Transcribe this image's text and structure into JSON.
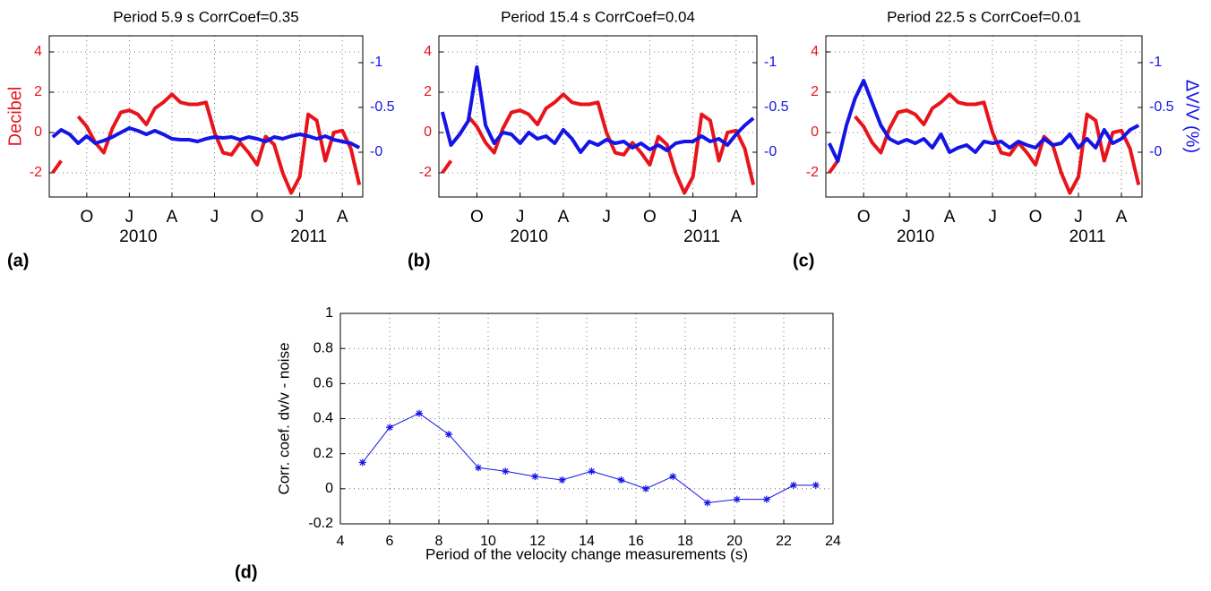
{
  "chart_data": [
    {
      "type": "line",
      "title": "Period 5.9 s CorrCoef=0.35",
      "panel_label": "(a)",
      "ylabel": "Decibel",
      "x": [
        2009.55,
        2009.6,
        2009.65,
        2009.7,
        2009.75,
        2009.8,
        2009.85,
        2009.9,
        2009.95,
        2010.0,
        2010.05,
        2010.1,
        2010.15,
        2010.2,
        2010.25,
        2010.3,
        2010.35,
        2010.4,
        2010.45,
        2010.5,
        2010.55,
        2010.6,
        2010.65,
        2010.7,
        2010.75,
        2010.8,
        2010.85,
        2010.9,
        2010.95,
        2011.0,
        2011.05,
        2011.1,
        2011.15,
        2011.2,
        2011.25,
        2011.3,
        2011.35
      ],
      "xlim": [
        2009.53,
        2011.37
      ],
      "xticks": [
        {
          "value": 2009.75,
          "label": "O"
        },
        {
          "value": 2010.0,
          "label": "J"
        },
        {
          "value": 2010.25,
          "label": "A"
        },
        {
          "value": 2010.5,
          "label": "J"
        },
        {
          "value": 2010.75,
          "label": "O"
        },
        {
          "value": 2011.0,
          "label": "J"
        },
        {
          "value": 2011.25,
          "label": "A"
        }
      ],
      "year_ticks": [
        2010,
        2011
      ],
      "ylim": [
        -3.2,
        4.8
      ],
      "yticks": [
        -2,
        0,
        2,
        4
      ],
      "y2lim": [
        0.5,
        -1.3
      ],
      "y2ticks": [
        -1,
        -0.5,
        {
          "value": 0,
          "label": "-0"
        }
      ],
      "grid": true,
      "series": [
        {
          "color": "#e8141b",
          "values": [
            -2.0,
            -1.4,
            null,
            0.8,
            0.3,
            -0.5,
            -1.0,
            0.2,
            1.0,
            1.1,
            0.9,
            0.4,
            1.2,
            1.5,
            1.9,
            1.5,
            1.4,
            1.4,
            1.5,
            0.0,
            -1.0,
            -1.1,
            -0.5,
            -1.0,
            -1.6,
            -0.2,
            -0.6,
            -2.0,
            -3.0,
            -2.2,
            0.9,
            0.6,
            -1.4,
            0.0,
            0.1,
            -0.8,
            -2.6
          ]
        },
        {
          "color": "#1414e6",
          "axis": "y2",
          "values": [
            -0.17,
            -0.25,
            -0.2,
            -0.1,
            -0.18,
            -0.1,
            -0.13,
            -0.17,
            -0.22,
            -0.27,
            -0.24,
            -0.2,
            -0.24,
            -0.2,
            -0.15,
            -0.14,
            -0.14,
            -0.12,
            -0.15,
            -0.17,
            -0.16,
            -0.17,
            -0.14,
            -0.17,
            -0.15,
            -0.12,
            -0.17,
            -0.15,
            -0.18,
            -0.2,
            -0.18,
            -0.15,
            -0.18,
            -0.14,
            -0.12,
            -0.1,
            -0.05
          ]
        }
      ]
    },
    {
      "type": "line",
      "title": "Period 15.4 s CorrCoef=0.04",
      "panel_label": "(b)",
      "x": [
        2009.55,
        2009.6,
        2009.65,
        2009.7,
        2009.75,
        2009.8,
        2009.85,
        2009.9,
        2009.95,
        2010.0,
        2010.05,
        2010.1,
        2010.15,
        2010.2,
        2010.25,
        2010.3,
        2010.35,
        2010.4,
        2010.45,
        2010.5,
        2010.55,
        2010.6,
        2010.65,
        2010.7,
        2010.75,
        2010.8,
        2010.85,
        2010.9,
        2010.95,
        2011.0,
        2011.05,
        2011.1,
        2011.15,
        2011.2,
        2011.25,
        2011.3,
        2011.35
      ],
      "xlim": [
        2009.53,
        2011.37
      ],
      "xticks": [
        {
          "value": 2009.75,
          "label": "O"
        },
        {
          "value": 2010.0,
          "label": "J"
        },
        {
          "value": 2010.25,
          "label": "A"
        },
        {
          "value": 2010.5,
          "label": "J"
        },
        {
          "value": 2010.75,
          "label": "O"
        },
        {
          "value": 2011.0,
          "label": "J"
        },
        {
          "value": 2011.25,
          "label": "A"
        }
      ],
      "year_ticks": [
        2010,
        2011
      ],
      "ylim": [
        -3.2,
        4.8
      ],
      "yticks": [
        -2,
        0,
        2,
        4
      ],
      "y2lim": [
        0.5,
        -1.3
      ],
      "y2ticks": [
        -1,
        -0.5,
        {
          "value": 0,
          "label": "-0"
        }
      ],
      "grid": true,
      "series": [
        {
          "color": "#e8141b",
          "values": [
            -2.0,
            -1.4,
            null,
            0.8,
            0.3,
            -0.5,
            -1.0,
            0.2,
            1.0,
            1.1,
            0.9,
            0.4,
            1.2,
            1.5,
            1.9,
            1.5,
            1.4,
            1.4,
            1.5,
            0.0,
            -1.0,
            -1.1,
            -0.5,
            -1.0,
            -1.6,
            -0.2,
            -0.6,
            -2.0,
            -3.0,
            -2.2,
            0.9,
            0.6,
            -1.4,
            0.0,
            0.1,
            -0.8,
            -2.6
          ]
        },
        {
          "color": "#1414e6",
          "axis": "y2",
          "values": [
            -0.45,
            -0.08,
            -0.2,
            -0.35,
            -0.95,
            -0.3,
            -0.1,
            -0.22,
            -0.2,
            -0.1,
            -0.22,
            -0.15,
            -0.18,
            -0.1,
            -0.25,
            -0.15,
            0.0,
            -0.12,
            -0.08,
            -0.14,
            -0.1,
            -0.12,
            -0.05,
            -0.1,
            -0.03,
            -0.08,
            -0.02,
            -0.1,
            -0.12,
            -0.12,
            -0.18,
            -0.12,
            -0.15,
            -0.08,
            -0.2,
            -0.3,
            -0.38
          ]
        }
      ]
    },
    {
      "type": "line",
      "title": "Period 22.5 s CorrCoef=0.01",
      "panel_label": "(c)",
      "y2label": "ΔV/V (%)",
      "x": [
        2009.55,
        2009.6,
        2009.65,
        2009.7,
        2009.75,
        2009.8,
        2009.85,
        2009.9,
        2009.95,
        2010.0,
        2010.05,
        2010.1,
        2010.15,
        2010.2,
        2010.25,
        2010.3,
        2010.35,
        2010.4,
        2010.45,
        2010.5,
        2010.55,
        2010.6,
        2010.65,
        2010.7,
        2010.75,
        2010.8,
        2010.85,
        2010.9,
        2010.95,
        2011.0,
        2011.05,
        2011.1,
        2011.15,
        2011.2,
        2011.25,
        2011.3,
        2011.35
      ],
      "xlim": [
        2009.53,
        2011.37
      ],
      "xticks": [
        {
          "value": 2009.75,
          "label": "O"
        },
        {
          "value": 2010.0,
          "label": "J"
        },
        {
          "value": 2010.25,
          "label": "A"
        },
        {
          "value": 2010.5,
          "label": "J"
        },
        {
          "value": 2010.75,
          "label": "O"
        },
        {
          "value": 2011.0,
          "label": "J"
        },
        {
          "value": 2011.25,
          "label": "A"
        }
      ],
      "year_ticks": [
        2010,
        2011
      ],
      "ylim": [
        -3.2,
        4.8
      ],
      "yticks": [
        -2,
        0,
        2,
        4
      ],
      "y2lim": [
        0.5,
        -1.3
      ],
      "y2ticks": [
        -1,
        -0.5,
        {
          "value": 0,
          "label": "-0"
        }
      ],
      "grid": true,
      "series": [
        {
          "color": "#e8141b",
          "values": [
            -2.0,
            -1.4,
            null,
            0.8,
            0.3,
            -0.5,
            -1.0,
            0.2,
            1.0,
            1.1,
            0.9,
            0.4,
            1.2,
            1.5,
            1.9,
            1.5,
            1.4,
            1.4,
            1.5,
            0.0,
            -1.0,
            -1.1,
            -0.5,
            -1.0,
            -1.6,
            -0.2,
            -0.6,
            -2.0,
            -3.0,
            -2.2,
            0.9,
            0.6,
            -1.4,
            0.0,
            0.1,
            -0.8,
            -2.6
          ]
        },
        {
          "color": "#1414e6",
          "axis": "y2",
          "values": [
            -0.1,
            0.1,
            -0.3,
            -0.6,
            -0.8,
            -0.55,
            -0.3,
            -0.15,
            -0.1,
            -0.14,
            -0.1,
            -0.15,
            -0.05,
            -0.2,
            0.0,
            -0.05,
            -0.08,
            0.0,
            -0.12,
            -0.1,
            -0.12,
            -0.05,
            -0.12,
            -0.08,
            -0.05,
            -0.15,
            -0.08,
            -0.1,
            -0.2,
            -0.05,
            -0.15,
            -0.05,
            -0.25,
            -0.1,
            -0.15,
            -0.25,
            -0.3
          ]
        }
      ]
    },
    {
      "type": "line",
      "panel_label": "(d)",
      "xlabel": "Period of the velocity change measurements (s)",
      "ylabel": "Corr. coef. dv/v - noise",
      "x": [
        4.9,
        6.0,
        7.2,
        8.4,
        9.6,
        10.7,
        11.9,
        13.0,
        14.2,
        15.4,
        16.4,
        17.5,
        18.9,
        20.1,
        21.3,
        22.4,
        23.3
      ],
      "values": [
        0.15,
        0.35,
        0.43,
        0.31,
        0.12,
        0.1,
        0.07,
        0.05,
        0.1,
        0.05,
        0.0,
        0.07,
        -0.08,
        -0.06,
        -0.06,
        0.02,
        0.02
      ],
      "color": "#1414e6",
      "xlim": [
        4,
        24
      ],
      "xticks": [
        4,
        6,
        8,
        10,
        12,
        14,
        16,
        18,
        20,
        22,
        24
      ],
      "ylim": [
        -0.2,
        1
      ],
      "yticks": [
        -0.2,
        0,
        0.2,
        0.4,
        0.6,
        0.8,
        1
      ],
      "grid": true
    }
  ]
}
